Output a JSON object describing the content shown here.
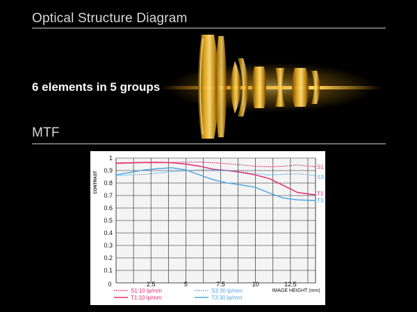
{
  "sections": {
    "optical_title": "Optical Structure Diagram",
    "mtf_title": "MTF"
  },
  "lens": {
    "elements_text": "6 elements in 5 groups",
    "glow_color": "#f2b01e"
  },
  "chart_data": {
    "type": "line",
    "title": "",
    "xlabel": "IMAGE HEIGHT (mm)",
    "ylabel": "CONTRAST",
    "xlim": [
      0,
      14.3
    ],
    "ylim": [
      0,
      1
    ],
    "x_ticks": [
      0,
      2.5,
      5,
      7.5,
      10,
      12.5
    ],
    "x_tick_labels": [
      "0",
      "2.5",
      "5",
      "7.5",
      "10",
      "12.5"
    ],
    "y_ticks": [
      0.1,
      0.2,
      0.3,
      0.4,
      0.5,
      0.6,
      0.7,
      0.8,
      0.9,
      1
    ],
    "y_tick_labels": [
      "0.1",
      "0.2",
      "0.3",
      "0.4",
      "0.5",
      "0.6",
      "0.7",
      "0.8",
      "0.9",
      "1"
    ],
    "grid": true,
    "series": [
      {
        "name": "S1:10 lp/mm",
        "label": "S1",
        "color": "#e8286e",
        "dash": "dotted",
        "x": [
          0,
          1,
          2,
          3,
          4,
          5,
          6,
          7,
          8,
          9,
          10,
          11,
          12,
          13,
          14.3
        ],
        "y": [
          0.955,
          0.96,
          0.962,
          0.963,
          0.965,
          0.967,
          0.968,
          0.963,
          0.955,
          0.945,
          0.935,
          0.93,
          0.935,
          0.945,
          0.93
        ]
      },
      {
        "name": "T1:10 lp/mm",
        "label": "T1",
        "color": "#e8286e",
        "dash": "solid",
        "x": [
          0,
          1,
          2,
          3,
          4,
          5,
          6,
          7,
          8,
          9,
          10,
          11,
          12,
          13,
          14.3
        ],
        "y": [
          0.96,
          0.963,
          0.965,
          0.966,
          0.962,
          0.952,
          0.935,
          0.91,
          0.9,
          0.885,
          0.865,
          0.835,
          0.78,
          0.725,
          0.705
        ]
      },
      {
        "name": "S3:30 lp/mm",
        "label": "S3",
        "color": "#4aa8e6",
        "dash": "dotted",
        "x": [
          0,
          1,
          2,
          3,
          4,
          5,
          6,
          7,
          8,
          9,
          10,
          11,
          12,
          13,
          14.3
        ],
        "y": [
          0.86,
          0.865,
          0.87,
          0.88,
          0.89,
          0.9,
          0.905,
          0.905,
          0.9,
          0.89,
          0.875,
          0.865,
          0.87,
          0.875,
          0.86
        ]
      },
      {
        "name": "T3:30 lp/mm",
        "label": "T3",
        "color": "#4aa8e6",
        "dash": "solid",
        "x": [
          0,
          1,
          2,
          3,
          4,
          5,
          6,
          7,
          8,
          9,
          10,
          11,
          12,
          13,
          14.3
        ],
        "y": [
          0.865,
          0.885,
          0.905,
          0.915,
          0.922,
          0.905,
          0.865,
          0.825,
          0.8,
          0.785,
          0.765,
          0.72,
          0.68,
          0.665,
          0.66
        ]
      }
    ],
    "legend": "bottom"
  }
}
